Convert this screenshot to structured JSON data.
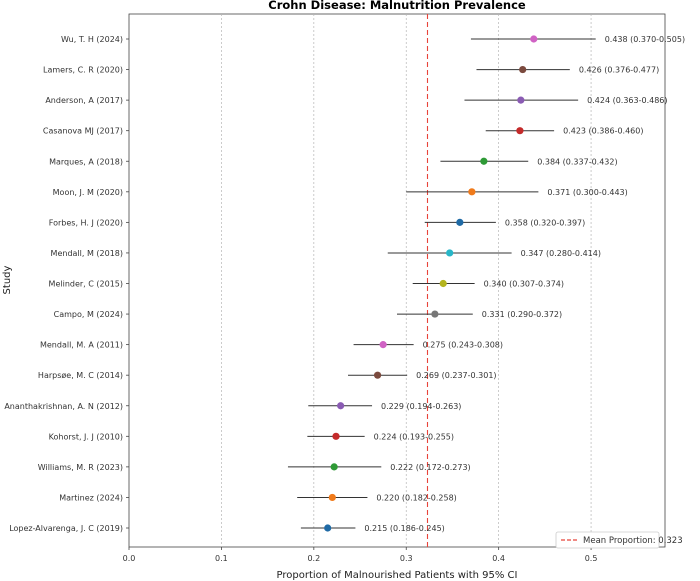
{
  "chart_data": {
    "type": "scatter",
    "title": "Crohn Disease: Malnutrition Prevalence",
    "xlabel": "Proportion of Malnourished Patients with 95% CI",
    "ylabel": "Study",
    "xlim": [
      0.0,
      0.58
    ],
    "x_ticks": [
      "0.0",
      "0.1",
      "0.2",
      "0.3",
      "0.4",
      "0.5"
    ],
    "grid": "vertical dashed",
    "mean": {
      "value": 0.323,
      "label": "Mean Proportion: 0.323",
      "color": "#e8443a"
    },
    "legend_position": "bottom-right",
    "studies": [
      {
        "study": "Wu, T. H (2024)",
        "value": 0.438,
        "low": 0.37,
        "high": 0.505,
        "label": "0.438 (0.370-0.505)",
        "color": "#d062c4"
      },
      {
        "study": "Lamers, C. R (2020)",
        "value": 0.426,
        "low": 0.376,
        "high": 0.477,
        "label": "0.426 (0.376-0.477)",
        "color": "#7b4a3e"
      },
      {
        "study": "Anderson, A (2017)",
        "value": 0.424,
        "low": 0.363,
        "high": 0.486,
        "label": "0.424 (0.363-0.486)",
        "color": "#8a5bb3"
      },
      {
        "study": "Casanova MJ (2017)",
        "value": 0.423,
        "low": 0.386,
        "high": 0.46,
        "label": "0.423 (0.386-0.460)",
        "color": "#c42a2a"
      },
      {
        "study": "Marques, A (2018)",
        "value": 0.384,
        "low": 0.337,
        "high": 0.432,
        "label": "0.384 (0.337-0.432)",
        "color": "#2e9a36"
      },
      {
        "study": "Moon, J. M (2020)",
        "value": 0.371,
        "low": 0.3,
        "high": 0.443,
        "label": "0.371 (0.300-0.443)",
        "color": "#f07a1a"
      },
      {
        "study": "Forbes, H. J (2020)",
        "value": 0.358,
        "low": 0.32,
        "high": 0.397,
        "label": "0.358 (0.320-0.397)",
        "color": "#1f6aa5"
      },
      {
        "study": "Mendall, M (2018)",
        "value": 0.347,
        "low": 0.28,
        "high": 0.414,
        "label": "0.347 (0.280-0.414)",
        "color": "#27b6c8"
      },
      {
        "study": "Melinder, C (2015)",
        "value": 0.34,
        "low": 0.307,
        "high": 0.374,
        "label": "0.340 (0.307-0.374)",
        "color": "#b5b51f"
      },
      {
        "study": "Campo, M (2024)",
        "value": 0.331,
        "low": 0.29,
        "high": 0.372,
        "label": "0.331 (0.290-0.372)",
        "color": "#777777"
      },
      {
        "study": "Mendall, M. A (2011)",
        "value": 0.275,
        "low": 0.243,
        "high": 0.308,
        "label": "0.275 (0.243-0.308)",
        "color": "#d062c4"
      },
      {
        "study": "Harpsøe, M. C (2014)",
        "value": 0.269,
        "low": 0.237,
        "high": 0.301,
        "label": "0.269 (0.237-0.301)",
        "color": "#7b4a3e"
      },
      {
        "study": "Ananthakrishnan, A. N (2012)",
        "value": 0.229,
        "low": 0.194,
        "high": 0.263,
        "label": "0.229 (0.194-0.263)",
        "color": "#8a5bb3"
      },
      {
        "study": "Kohorst, J. J (2010)",
        "value": 0.224,
        "low": 0.193,
        "high": 0.255,
        "label": "0.224 (0.193-0.255)",
        "color": "#c42a2a"
      },
      {
        "study": "Williams, M. R (2023)",
        "value": 0.222,
        "low": 0.172,
        "high": 0.273,
        "label": "0.222 (0.172-0.273)",
        "color": "#2e9a36"
      },
      {
        "study": "Martinez (2024)",
        "value": 0.22,
        "low": 0.182,
        "high": 0.258,
        "label": "0.220 (0.182-0.258)",
        "color": "#f07a1a"
      },
      {
        "study": "Lopez-Alvarenga, J. C (2019)",
        "value": 0.215,
        "low": 0.186,
        "high": 0.245,
        "label": "0.215 (0.186-0.245)",
        "color": "#1f6aa5"
      }
    ]
  }
}
